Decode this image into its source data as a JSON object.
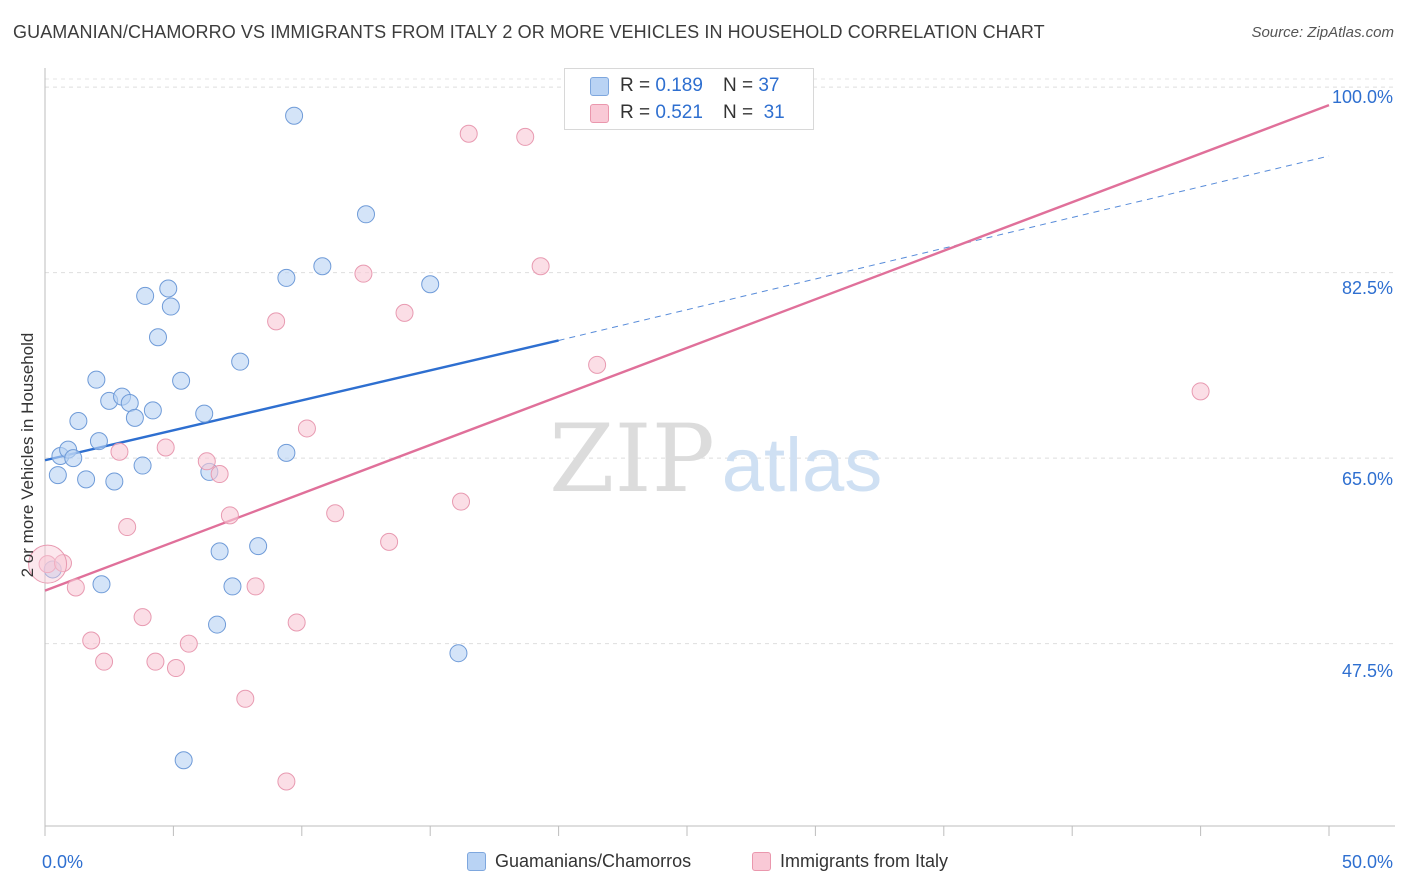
{
  "title": "GUAMANIAN/CHAMORRO VS IMMIGRANTS FROM ITALY 2 OR MORE VEHICLES IN HOUSEHOLD CORRELATION CHART",
  "source": "Source: ZipAtlas.com",
  "watermark": {
    "zip": "ZIP",
    "atlas": "atlas"
  },
  "stats": [
    {
      "r_label": "R =",
      "r_value": "0.189",
      "n_label": "N =",
      "n_value": "37"
    },
    {
      "r_label": "R =",
      "r_value": "0.521",
      "n_label": "N =",
      "n_value": "31"
    }
  ],
  "legend": [
    "Guamanians/Chamorros",
    "Immigrants from Italy"
  ],
  "x_axis": {
    "min_label": "0.0%",
    "max_label": "50.0%"
  },
  "y_ticks": [
    "100.0%",
    "82.5%",
    "65.0%",
    "47.5%"
  ],
  "chart_data": {
    "type": "scatter",
    "title": "GUAMANIAN/CHAMORRO VS IMMIGRANTS FROM ITALY 2 OR MORE VEHICLES IN HOUSEHOLD CORRELATION CHART",
    "xlabel": "",
    "ylabel": "2 or more Vehicles in Household",
    "xlim": [
      0,
      50
    ],
    "ylim": [
      30.3,
      101.8
    ],
    "y_tick_values": [
      100.0,
      82.5,
      65.0,
      47.5
    ],
    "colors": {
      "blue": "#2e6fd0",
      "pink": "#e0709a",
      "blue_fill": "#b9d3f4",
      "pink_fill": "#f9c9d6"
    },
    "series": [
      {
        "name": "Guamanians/Chamorros",
        "color": "blue",
        "points": [
          [
            0.3,
            54.5
          ],
          [
            0.5,
            63.4
          ],
          [
            0.6,
            65.2
          ],
          [
            0.9,
            65.8
          ],
          [
            1.1,
            65.0
          ],
          [
            1.3,
            68.5
          ],
          [
            1.6,
            63.0
          ],
          [
            2.0,
            72.4
          ],
          [
            2.1,
            66.6
          ],
          [
            2.2,
            53.1
          ],
          [
            2.5,
            70.4
          ],
          [
            2.7,
            62.8
          ],
          [
            3.0,
            70.8
          ],
          [
            3.3,
            70.2
          ],
          [
            3.5,
            68.8
          ],
          [
            3.8,
            64.3
          ],
          [
            3.9,
            80.3
          ],
          [
            4.2,
            69.5
          ],
          [
            4.4,
            76.4
          ],
          [
            4.8,
            81.0
          ],
          [
            4.9,
            79.3
          ],
          [
            5.3,
            72.3
          ],
          [
            5.4,
            36.5
          ],
          [
            6.2,
            69.2
          ],
          [
            6.4,
            63.7
          ],
          [
            6.7,
            49.3
          ],
          [
            6.8,
            56.2
          ],
          [
            7.3,
            52.9
          ],
          [
            7.6,
            74.1
          ],
          [
            8.3,
            56.7
          ],
          [
            9.4,
            82.0
          ],
          [
            9.4,
            65.5
          ],
          [
            9.7,
            97.3
          ],
          [
            10.8,
            83.1
          ],
          [
            12.5,
            88.0
          ],
          [
            15.0,
            81.4
          ],
          [
            16.1,
            46.6
          ]
        ]
      },
      {
        "name": "Immigrants from Italy",
        "color": "pink",
        "points": [
          [
            0.1,
            55.0
          ],
          [
            0.7,
            55.1
          ],
          [
            1.2,
            52.8
          ],
          [
            1.8,
            47.8
          ],
          [
            2.3,
            45.8
          ],
          [
            2.9,
            65.6
          ],
          [
            3.2,
            58.5
          ],
          [
            3.8,
            50.0
          ],
          [
            4.3,
            45.8
          ],
          [
            4.7,
            66.0
          ],
          [
            5.1,
            45.2
          ],
          [
            5.6,
            47.5
          ],
          [
            6.3,
            64.7
          ],
          [
            6.8,
            63.5
          ],
          [
            7.2,
            59.6
          ],
          [
            7.8,
            42.3
          ],
          [
            8.2,
            52.9
          ],
          [
            9.0,
            77.9
          ],
          [
            9.4,
            34.5
          ],
          [
            9.8,
            49.5
          ],
          [
            10.2,
            67.8
          ],
          [
            11.3,
            59.8
          ],
          [
            12.4,
            82.4
          ],
          [
            13.4,
            57.1
          ],
          [
            14.0,
            78.7
          ],
          [
            16.2,
            60.9
          ],
          [
            16.5,
            95.6
          ],
          [
            18.7,
            95.3
          ],
          [
            19.3,
            83.1
          ],
          [
            21.5,
            73.8
          ],
          [
            45.0,
            71.3
          ]
        ]
      }
    ],
    "trend_lines": [
      {
        "series": "Guamanians/Chamorros",
        "x": [
          0,
          20.0
        ],
        "y": [
          64.8,
          76.1
        ],
        "style": "solid"
      },
      {
        "series": "Guamanians/Chamorros",
        "x": [
          20.0,
          50.0
        ],
        "y": [
          76.1,
          93.5
        ],
        "style": "dashed"
      },
      {
        "series": "Immigrants from Italy",
        "x": [
          0,
          50.0
        ],
        "y": [
          52.5,
          98.3
        ],
        "style": "solid"
      }
    ]
  }
}
